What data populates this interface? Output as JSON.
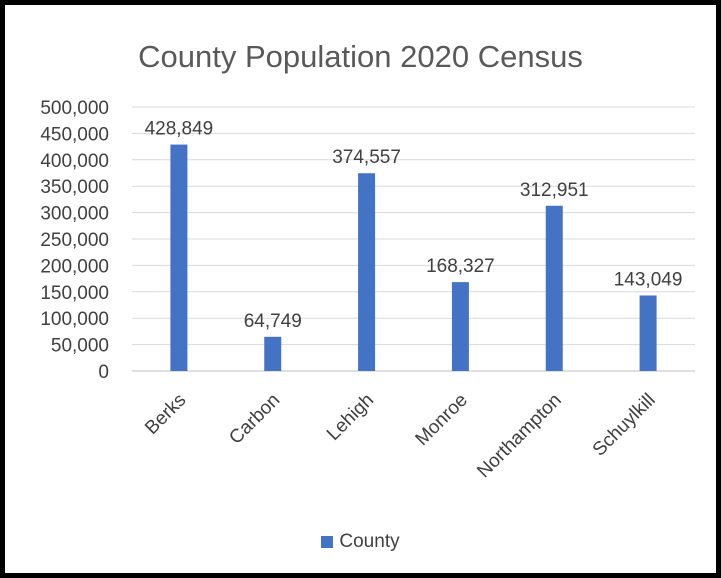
{
  "chart_data": {
    "type": "bar",
    "title": "County Population 2020 Census",
    "categories": [
      "Berks",
      "Carbon",
      "Lehigh",
      "Monroe",
      "Northampton",
      "Schuylkill"
    ],
    "series": [
      {
        "name": "County",
        "values": [
          428849,
          64749,
          374557,
          168327,
          312951,
          143049
        ]
      }
    ],
    "data_labels": [
      "428,849",
      "64,749",
      "374,557",
      "168,327",
      "312,951",
      "143,049"
    ],
    "yticks": [
      "0",
      "50,000",
      "100,000",
      "150,000",
      "200,000",
      "250,000",
      "300,000",
      "350,000",
      "400,000",
      "450,000",
      "500,000"
    ],
    "ylim": [
      0,
      500000
    ],
    "grid": true,
    "legend_position": "bottom",
    "bar_color": "#4472C4",
    "xlabel": "",
    "ylabel": ""
  }
}
